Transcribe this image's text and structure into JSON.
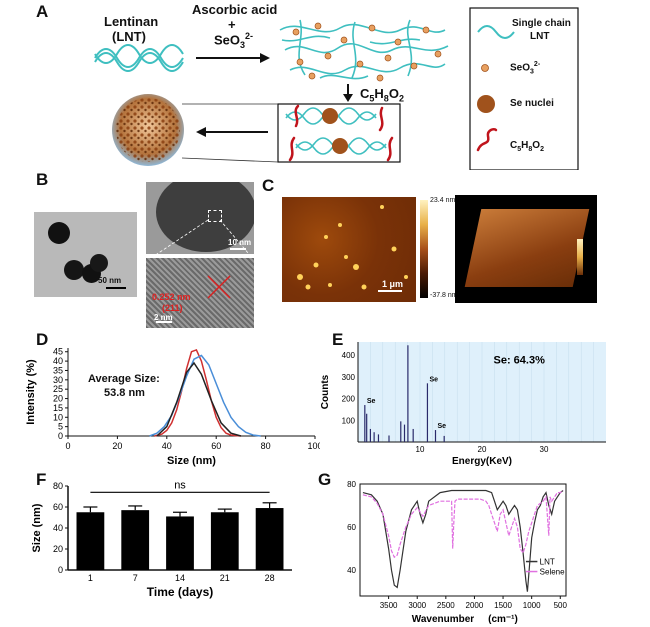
{
  "panels": {
    "a": "A",
    "b": "B",
    "c": "C",
    "d": "D",
    "e": "E",
    "f": "F",
    "g": "G"
  },
  "panel_a": {
    "lentinan_line1": "Lentinan",
    "lentinan_line2": "(LNT)",
    "reagent_line1": "Ascorbic acid",
    "reagent_plus": "+",
    "reagent_line2": "SeO",
    "reagent_sub": "3",
    "reagent_sup": "2-",
    "step2": "C",
    "step2_sub1": "5",
    "step2_h": "H",
    "step2_sub2": "8",
    "step2_o": "O",
    "step2_sub3": "2",
    "legend": {
      "chain_line1": "Single chain",
      "chain_line2": "LNT",
      "seo3": "SeO",
      "seo3_sub": "3",
      "seo3_sup": "2-",
      "nuclei": "Se nuclei",
      "c5": "C",
      "c5_sub1": "5",
      "c5_h": "H",
      "c5_sub2": "8",
      "c5_o": "O",
      "c5_sub3": "2"
    },
    "colors": {
      "chain": "#3fbfc0",
      "nuclei": "#a0521c",
      "ion": "#d98c4a",
      "peg": "#c0141c"
    }
  },
  "panel_b": {
    "scale1": "50 nm",
    "scale2": "10 nm",
    "scale3": "2 nm",
    "lattice_value": "0.252 nm",
    "lattice_plane": "(211)"
  },
  "panel_c": {
    "bar_top": "23.4 nm",
    "bar_bottom": "-37.8 nm",
    "scale": "1 μm"
  },
  "chart_data": [
    {
      "type": "line",
      "panel": "D",
      "xlabel": "Size (nm)",
      "ylabel": "Intensity (%)",
      "xlim": [
        0,
        100
      ],
      "ylim": [
        0,
        47
      ],
      "xticks": [
        0,
        20,
        40,
        60,
        80,
        100
      ],
      "yticks": [
        0,
        5,
        10,
        15,
        20,
        25,
        30,
        35,
        40,
        45
      ],
      "annotation_line1": "Average Size:",
      "annotation_line2": "53.8 nm",
      "series": [
        {
          "color": "#d03030",
          "x": [
            35,
            38,
            40,
            42,
            44,
            46,
            48,
            50,
            52,
            54,
            56,
            58,
            60,
            62,
            64,
            66,
            68,
            70
          ],
          "values": [
            0,
            1,
            3,
            7,
            14,
            24,
            36,
            45,
            46,
            40,
            30,
            19,
            10,
            4.5,
            1.5,
            0.5,
            0.2,
            0
          ]
        },
        {
          "color": "#4a8ed8",
          "x": [
            33,
            36,
            39,
            42,
            45,
            48,
            51,
            54,
            57,
            60,
            63,
            66,
            69,
            72,
            75,
            78
          ],
          "values": [
            0,
            1.5,
            5,
            11,
            21,
            32,
            41,
            43,
            38,
            28,
            18,
            10,
            5,
            2,
            0.5,
            0
          ]
        },
        {
          "color": "#222222",
          "x": [
            36,
            40,
            44,
            48,
            51,
            54,
            58,
            62,
            66,
            70
          ],
          "values": [
            0,
            5,
            18,
            34,
            39,
            33,
            19,
            7,
            1.5,
            0
          ]
        }
      ]
    },
    {
      "type": "bar",
      "panel": "E",
      "xlabel": "Energy(KeV)",
      "ylabel": "Counts",
      "xlim": [
        0,
        40
      ],
      "ylim": [
        0,
        460
      ],
      "xticks": [
        10,
        20,
        30
      ],
      "yticks": [
        100,
        200,
        300,
        400
      ],
      "annotation": "Se: 64.3%",
      "peak_labels": [
        "Se",
        "Se",
        "Se"
      ],
      "peaks": [
        {
          "x": 1.1,
          "value": 170
        },
        {
          "x": 1.4,
          "value": 130
        },
        {
          "x": 2.0,
          "value": 60
        },
        {
          "x": 2.6,
          "value": 45
        },
        {
          "x": 3.3,
          "value": 35
        },
        {
          "x": 5.0,
          "value": 30
        },
        {
          "x": 6.9,
          "value": 95
        },
        {
          "x": 7.5,
          "value": 80
        },
        {
          "x": 8.05,
          "value": 445
        },
        {
          "x": 8.9,
          "value": 60
        },
        {
          "x": 11.2,
          "value": 270
        },
        {
          "x": 12.5,
          "value": 55
        },
        {
          "x": 13.9,
          "value": 28
        }
      ]
    },
    {
      "type": "bar",
      "panel": "F",
      "xlabel": "Time (days)",
      "ylabel": "Size (nm)",
      "categories": [
        "1",
        "7",
        "14",
        "21",
        "28"
      ],
      "values": [
        55,
        57,
        51,
        55,
        59
      ],
      "errors": [
        5,
        4,
        4,
        3,
        5
      ],
      "ylim": [
        0,
        80
      ],
      "yticks": [
        0,
        20,
        40,
        60,
        80
      ],
      "significance": "ns"
    },
    {
      "type": "line",
      "panel": "G",
      "xlabel_main": "Wavenumber",
      "xlabel_unit": "(cm⁻¹)",
      "xlim": [
        4000,
        400
      ],
      "ylim": [
        28,
        80
      ],
      "xticks": [
        3500,
        3000,
        2500,
        2000,
        1500,
        1000,
        500
      ],
      "yticks": [
        40,
        60,
        80
      ],
      "series": [
        {
          "name": "LNT",
          "color": "#333333",
          "x": [
            3950,
            3800,
            3700,
            3600,
            3500,
            3450,
            3400,
            3350,
            3300,
            3200,
            3100,
            3000,
            2950,
            2900,
            2850,
            2800,
            2600,
            2400,
            2200,
            2000,
            1900,
            1800,
            1700,
            1650,
            1600,
            1550,
            1500,
            1450,
            1400,
            1350,
            1300,
            1250,
            1200,
            1150,
            1100,
            1075,
            1050,
            1020,
            1000,
            950,
            900,
            850,
            800,
            750,
            700,
            650,
            600,
            550,
            500,
            450
          ],
          "values": [
            76,
            75,
            72,
            66,
            50,
            40,
            33,
            32,
            40,
            58,
            68,
            72,
            66,
            62,
            66,
            72,
            76,
            77,
            77,
            77,
            77,
            77,
            76,
            72,
            68,
            70,
            72,
            70,
            66,
            68,
            70,
            68,
            60,
            48,
            35,
            30,
            38,
            48,
            55,
            62,
            68,
            70,
            74,
            76,
            70,
            66,
            72,
            74,
            76,
            77
          ]
        },
        {
          "name": "Selene",
          "color": "#e070e0",
          "x": [
            3950,
            3800,
            3700,
            3600,
            3500,
            3450,
            3400,
            3350,
            3300,
            3200,
            3100,
            3000,
            2950,
            2900,
            2800,
            2600,
            2400,
            2380,
            2360,
            2340,
            2300,
            2200,
            2000,
            1900,
            1800,
            1750,
            1700,
            1650,
            1600,
            1550,
            1500,
            1450,
            1400,
            1350,
            1300,
            1250,
            1200,
            1150,
            1100,
            1050,
            1000,
            950,
            900,
            800,
            750,
            700,
            680,
            650,
            600,
            550,
            500,
            450
          ],
          "values": [
            75,
            74,
            71,
            66,
            56,
            49,
            46,
            47,
            52,
            60,
            66,
            69,
            67,
            65,
            70,
            72,
            72,
            50,
            62,
            72,
            73,
            73,
            73,
            73,
            72,
            70,
            66,
            62,
            58,
            66,
            68,
            62,
            56,
            60,
            64,
            60,
            50,
            48,
            52,
            58,
            62,
            66,
            70,
            72,
            74,
            56,
            74,
            72,
            74,
            76,
            76,
            77
          ]
        }
      ]
    }
  ]
}
